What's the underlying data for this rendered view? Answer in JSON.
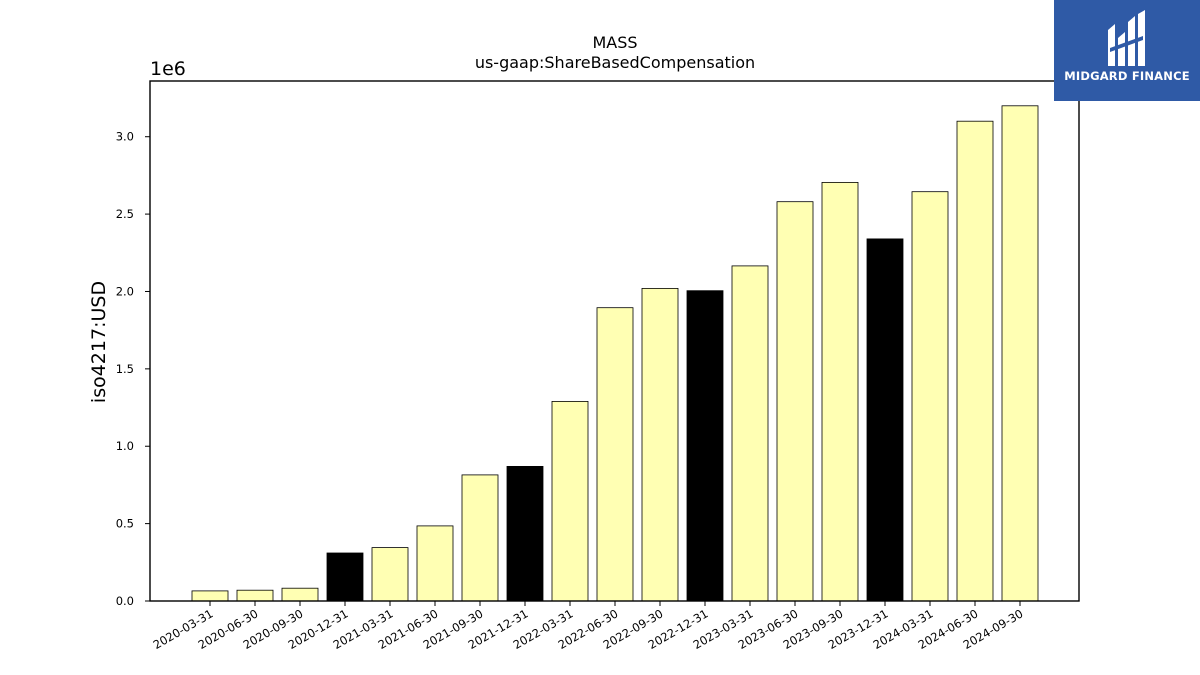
{
  "chart_data": {
    "type": "bar",
    "title": "MASS",
    "subtitle": "us-gaap:ShareBasedCompensation",
    "ylabel": "iso4217:USD",
    "xlabel": "",
    "y_offset_label": "1e6",
    "ylim": [
      0,
      3360000
    ],
    "yticks": [
      0,
      500000,
      1000000,
      1500000,
      2000000,
      2500000,
      3000000
    ],
    "ytick_labels": [
      "0.0",
      "0.5",
      "1.0",
      "1.5",
      "2.0",
      "2.5",
      "3.0"
    ],
    "categories": [
      "2020-03-31",
      "2020-06-30",
      "2020-09-30",
      "2020-12-31",
      "2021-03-31",
      "2021-06-30",
      "2021-09-30",
      "2021-12-31",
      "2022-03-31",
      "2022-06-30",
      "2022-09-30",
      "2022-12-31",
      "2023-03-31",
      "2023-06-30",
      "2023-09-30",
      "2023-12-31",
      "2024-03-31",
      "2024-06-30",
      "2024-09-30"
    ],
    "values": [
      65000,
      70000,
      83000,
      310000,
      345000,
      485000,
      815000,
      870000,
      1290000,
      1895000,
      2020000,
      2005000,
      2165000,
      2580000,
      2705000,
      2340000,
      2645000,
      3100000,
      3200000
    ],
    "highlight_quarter": "12-31",
    "colors": {
      "bar": "#ffffb3",
      "highlight": "#000000",
      "edge": "#000000"
    },
    "grid": false,
    "legend": "none"
  },
  "logo": {
    "text": "MIDGARD FINANCE",
    "icon": "midgard-logo-icon",
    "background": "#2f5aa6"
  }
}
